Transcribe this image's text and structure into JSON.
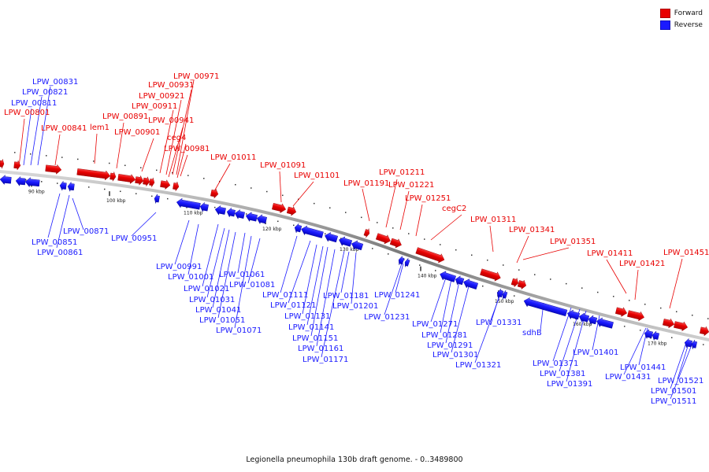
{
  "legend": {
    "forward_label": "Forward",
    "reverse_label": "Reverse"
  },
  "colors": {
    "forward": "#e80000",
    "reverse": "#1a1aff",
    "backbone": "#8c8c8c",
    "tick": "#222222"
  },
  "caption": "Legionella pneumophila 130b draft genome. - 0..3489800",
  "scale": {
    "unit": "kbp",
    "labels": [
      "90 kbp",
      "100 kbp",
      "110 kbp",
      "120 kbp",
      "130 kbp",
      "140 kbp",
      "150 kbp",
      "160 kbp",
      "170 kbp"
    ]
  },
  "forward_labels": [
    "LPW_00971",
    "LPW_00931",
    "LPW_00921",
    "LPW_00911",
    "LPW_00891",
    "LPW_00941",
    "LPW_00901",
    "LPW_00801",
    "LPW_00841",
    "lem1",
    "ceg4",
    "LPW_00981",
    "LPW_01011",
    "LPW_01091",
    "LPW_01101",
    "LPW_01191",
    "LPW_01211",
    "LPW_01221",
    "LPW_01251",
    "cegC2",
    "LPW_01311",
    "LPW_01341",
    "LPW_01351",
    "LPW_01411",
    "LPW_01421",
    "LPW_01451"
  ],
  "reverse_labels": [
    "LPW_00831",
    "LPW_00821",
    "LPW_00811",
    "LPW_00851",
    "LPW_00861",
    "LPW_00871",
    "LPW_00951",
    "LPW_00991",
    "LPW_01001",
    "LPW_01021",
    "LPW_01031",
    "LPW_01041",
    "LPW_01051",
    "LPW_01071",
    "LPW_01061",
    "LPW_01081",
    "LPW_01111",
    "LPW_01121",
    "LPW_01131",
    "LPW_01141",
    "LPW_01151",
    "LPW_01161",
    "LPW_01171",
    "LPW_01181",
    "LPW_01201",
    "LPW_01241",
    "LPW_01231",
    "LPW_01271",
    "LPW_01281",
    "LPW_01291",
    "LPW_01301",
    "LPW_01321",
    "LPW_01331",
    "sdhB",
    "LPW_01371",
    "LPW_01381",
    "LPW_01391",
    "LPW_01401",
    "LPW_01441",
    "LPW_01431",
    "LPW_01521",
    "LPW_01501",
    "LPW_01511"
  ]
}
